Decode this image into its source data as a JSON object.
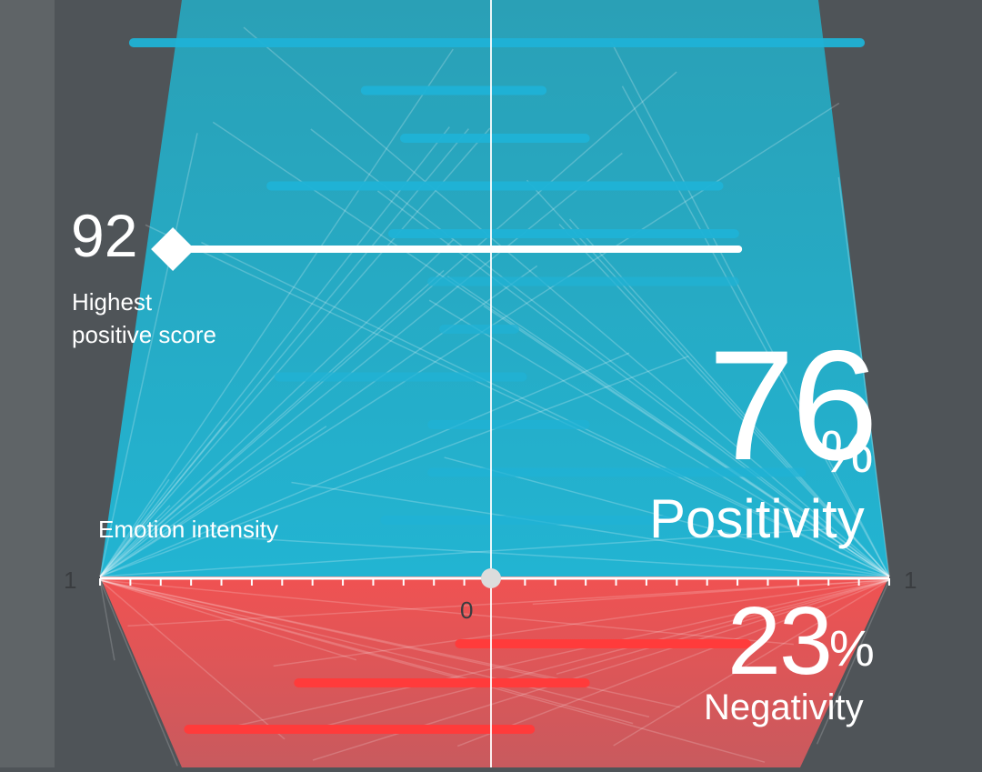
{
  "chart_data": {
    "type": "bar",
    "axis_title": "Emotion intensity",
    "ticks": {
      "left": "1",
      "center": "0",
      "right": "1"
    },
    "positive_bars": [
      [
        -0.91,
        0.94
      ],
      [
        -0.32,
        0.13
      ],
      [
        -0.22,
        0.24
      ],
      [
        -0.56,
        0.58
      ],
      [
        -0.25,
        0.62
      ],
      [
        -0.15,
        0.62
      ],
      [
        -0.12,
        0.06
      ],
      [
        -0.54,
        0.08
      ],
      [
        -0.15,
        0.24
      ],
      [
        -0.15,
        0.79
      ],
      [
        -0.27,
        0.45
      ]
    ],
    "highlight": {
      "value": "92",
      "label_line1": "Highest",
      "label_line2": "positive score",
      "range": [
        -0.81,
        0.63
      ]
    },
    "negative_bars": [
      [
        -0.08,
        0.65
      ],
      [
        -0.49,
        0.24
      ],
      [
        -0.77,
        0.1
      ]
    ],
    "summary": {
      "positivity_value": "76",
      "positivity_unit": "%",
      "positivity_label": "Positivity",
      "negativity_value": "23",
      "negativity_unit": "%",
      "negativity_label": "Negativity"
    },
    "colors": {
      "positive": "#22b1cf",
      "negative": "#f04e4e",
      "background": "#4f5458"
    }
  }
}
